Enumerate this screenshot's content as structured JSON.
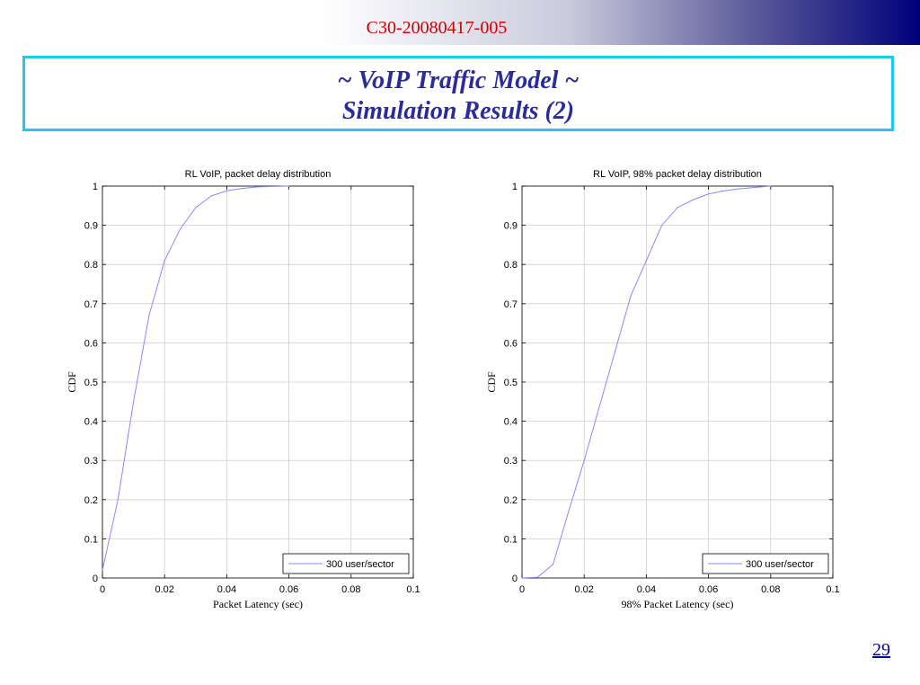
{
  "header": {
    "doc_id": "C30-20080417-005",
    "title_line1": "~ VoIP Traffic Model ~",
    "title_line2": "Simulation Results (2)"
  },
  "footer": {
    "page_number": "29"
  },
  "colors": {
    "accent_border": "#1ec8ee",
    "title_text": "#2b2b9a",
    "doc_id": "#cc0000",
    "series_line": "#8888ff"
  },
  "chart_data": [
    {
      "type": "line",
      "title": "RL VoIP, packet delay distribution",
      "xlabel": "Packet Latency (sec)",
      "ylabel": "CDF",
      "xlim": [
        0,
        0.1
      ],
      "ylim": [
        0,
        1
      ],
      "xticks": [
        0,
        0.02,
        0.04,
        0.06,
        0.08,
        0.1
      ],
      "xtick_labels": [
        "0",
        "0.02",
        "0.04",
        "0.06",
        "0.08",
        "0.1"
      ],
      "yticks": [
        0,
        0.1,
        0.2,
        0.3,
        0.4,
        0.5,
        0.6,
        0.7,
        0.8,
        0.9,
        1
      ],
      "ytick_labels": [
        "0",
        "0.1",
        "0.2",
        "0.3",
        "0.4",
        "0.5",
        "0.6",
        "0.7",
        "0.8",
        "0.9",
        "1"
      ],
      "grid": true,
      "legend_position": "bottom-right",
      "series": [
        {
          "name": "300 user/sector",
          "color": "#8888ff",
          "x": [
            0,
            0.005,
            0.01,
            0.015,
            0.02,
            0.025,
            0.03,
            0.035,
            0.04,
            0.045,
            0.05,
            0.06
          ],
          "y": [
            0.02,
            0.2,
            0.45,
            0.67,
            0.81,
            0.89,
            0.945,
            0.975,
            0.988,
            0.994,
            0.998,
            1.0
          ]
        }
      ]
    },
    {
      "type": "line",
      "title": "RL VoIP, 98% packet delay distribution",
      "xlabel": "98% Packet Latency (sec)",
      "ylabel": "CDF",
      "xlim": [
        0,
        0.1
      ],
      "ylim": [
        0,
        1
      ],
      "xticks": [
        0,
        0.02,
        0.04,
        0.06,
        0.08,
        0.1
      ],
      "xtick_labels": [
        "0",
        "0.02",
        "0.04",
        "0.06",
        "0.08",
        "0.1"
      ],
      "yticks": [
        0,
        0.1,
        0.2,
        0.3,
        0.4,
        0.5,
        0.6,
        0.7,
        0.8,
        0.9,
        1
      ],
      "ytick_labels": [
        "0",
        "0.1",
        "0.2",
        "0.3",
        "0.4",
        "0.5",
        "0.6",
        "0.7",
        "0.8",
        "0.9",
        "1"
      ],
      "grid": true,
      "legend_position": "bottom-right",
      "series": [
        {
          "name": "300 user/sector",
          "color": "#8888ff",
          "x": [
            0,
            0.005,
            0.01,
            0.015,
            0.02,
            0.025,
            0.03,
            0.035,
            0.04,
            0.045,
            0.05,
            0.055,
            0.06,
            0.065,
            0.07,
            0.08
          ],
          "y": [
            0,
            0.002,
            0.035,
            0.17,
            0.3,
            0.44,
            0.58,
            0.72,
            0.81,
            0.9,
            0.945,
            0.965,
            0.98,
            0.988,
            0.993,
            1.0
          ]
        }
      ]
    }
  ]
}
